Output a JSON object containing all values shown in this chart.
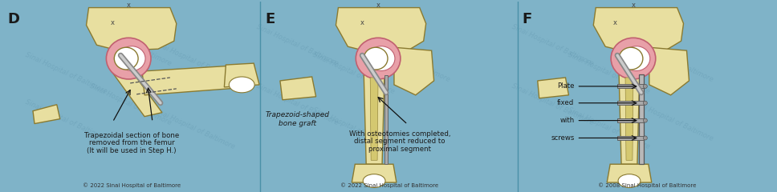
{
  "bg_color": "#7fb3c8",
  "panel_D": {
    "label": "D",
    "caption_line1": "Trapezoidal section of bone",
    "caption_line2": "removed from the femur",
    "caption_line3": "(It will be used in Step H.)",
    "copyright": "© 2022 Sinai Hospital of Baltimore"
  },
  "panel_E": {
    "label": "E",
    "graft_label_line1": "Trapezoid-shaped",
    "graft_label_line2": "bone graft",
    "caption_line1": "With osteotomies completed,",
    "caption_line2": "distal segment reduced to",
    "caption_line3": "proximal segment",
    "copyright": "© 2022 Sinai Hospital of Baltimore"
  },
  "panel_F": {
    "label": "F",
    "plate_label_line1": "Plate",
    "plate_label_line2": "fixed",
    "plate_label_line3": "with",
    "plate_label_line4": "screws",
    "copyright": "© 2008 Sinai Hospital of Baltimore"
  },
  "colors": {
    "bone_fill": "#e8dfa0",
    "bone_outline": "#8a7a30",
    "joint_pink": "#e8a0a8",
    "joint_outline": "#c06070",
    "white_cartilage": "#ffffff",
    "rod_gray": "#999999",
    "label_color": "#1a1a1a",
    "caption_color": "#1a1a1a",
    "watermark_color": "#5a8fa8",
    "divider_color": "#4a90a8"
  }
}
